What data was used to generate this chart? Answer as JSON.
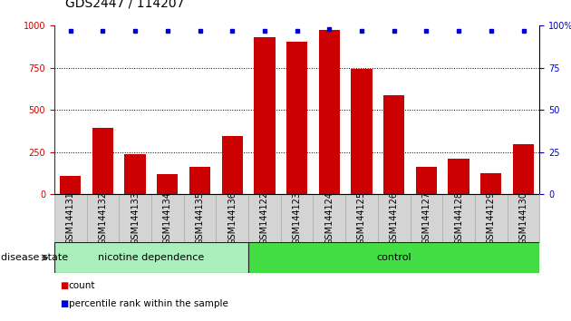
{
  "title": "GDS2447 / 114207",
  "categories": [
    "GSM144131",
    "GSM144132",
    "GSM144133",
    "GSM144134",
    "GSM144135",
    "GSM144136",
    "GSM144122",
    "GSM144123",
    "GSM144124",
    "GSM144125",
    "GSM144126",
    "GSM144127",
    "GSM144128",
    "GSM144129",
    "GSM144130"
  ],
  "counts": [
    110,
    395,
    240,
    120,
    165,
    345,
    930,
    905,
    975,
    745,
    590,
    160,
    210,
    125,
    295
  ],
  "percentiles": [
    97,
    97,
    97,
    97,
    97,
    97,
    97,
    97,
    98,
    97,
    97,
    97,
    97,
    97,
    97
  ],
  "bar_color": "#cc0000",
  "dot_color": "#0000cc",
  "group1_label": "nicotine dependence",
  "group1_count": 6,
  "group2_label": "control",
  "group2_count": 9,
  "group_label": "disease state",
  "group1_color": "#aaeebb",
  "group2_color": "#44dd44",
  "ylim": [
    0,
    1000
  ],
  "yticks_left": [
    0,
    250,
    500,
    750,
    1000
  ],
  "yticks_right": [
    0,
    25,
    50,
    75,
    100
  ],
  "legend_count_label": "count",
  "legend_pct_label": "percentile rank within the sample",
  "bg_color": "#ffffff",
  "plot_bg": "#ffffff",
  "title_fontsize": 10,
  "tick_fontsize": 7,
  "label_fontsize": 7,
  "group_fontsize": 8
}
